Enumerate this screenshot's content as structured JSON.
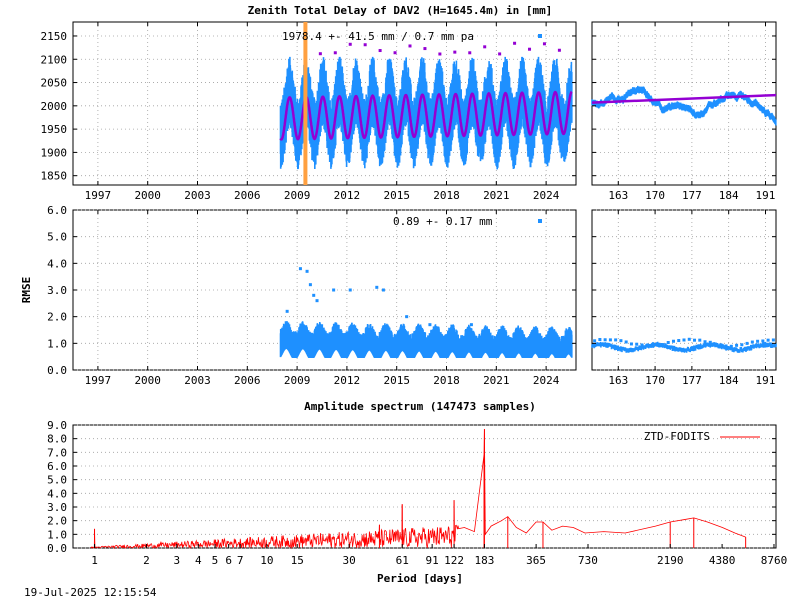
{
  "title": "Zenith Total Delay of DAV2 (H=1645.4m) in [mm]",
  "timestamp": "19-Jul-2025 12:15:54",
  "colors": {
    "data": "#1e90ff",
    "model": "#9400d3",
    "marker": "#ffa040",
    "spectrum": "#ff0000"
  },
  "chart_data": [
    {
      "id": "ztd-longterm",
      "type": "scatter",
      "title": "Zenith Total Delay of DAV2 (H=1645.4m) in [mm]",
      "annotation": "1978.4 +-  41.5 mm /  0.7 mm pa",
      "xlim": [
        1995.5,
        2025.8
      ],
      "ylim": [
        1830,
        2180
      ],
      "xticks": [
        1997,
        2000,
        2003,
        2006,
        2009,
        2012,
        2015,
        2018,
        2021,
        2024
      ],
      "yticks": [
        1850,
        1900,
        1950,
        2000,
        2050,
        2100,
        2150
      ],
      "data_start": 2008.0,
      "data_end": 2025.55,
      "mean": 1978.4,
      "seasonal_amplitude": 45,
      "trend_per_year": 0.7,
      "vertical_marker_x": 2009.5,
      "grid": true,
      "legend_position": "top"
    },
    {
      "id": "ztd-recent",
      "type": "scatter",
      "xlim": [
        158,
        193
      ],
      "ylim": [
        1830,
        2180
      ],
      "xticks": [
        163,
        170,
        177,
        184,
        191
      ],
      "grid": true
    },
    {
      "id": "rmse-longterm",
      "type": "scatter",
      "ylabel": "RMSE",
      "annotation": "0.89 +-  0.17 mm",
      "xlim": [
        1995.5,
        2025.8
      ],
      "ylim": [
        0,
        6
      ],
      "xticks": [
        1997,
        2000,
        2003,
        2006,
        2009,
        2012,
        2015,
        2018,
        2021,
        2024
      ],
      "yticks": [
        "0.0",
        "1.0",
        "2.0",
        "3.0",
        "4.0",
        "5.0",
        "6.0"
      ],
      "mean": 0.89,
      "outliers": [
        [
          2009.2,
          3.8
        ],
        [
          2009.6,
          3.7
        ],
        [
          2009.8,
          3.2
        ],
        [
          2010.0,
          2.8
        ],
        [
          2010.2,
          2.6
        ],
        [
          2011.2,
          3.0
        ],
        [
          2012.2,
          3.0
        ],
        [
          2013.8,
          3.1
        ],
        [
          2014.2,
          3.0
        ],
        [
          2008.4,
          2.2
        ],
        [
          2015.6,
          2.0
        ],
        [
          2017.0,
          1.7
        ],
        [
          2019.5,
          1.7
        ]
      ],
      "grid": true,
      "legend_position": "top"
    },
    {
      "id": "rmse-recent",
      "type": "scatter",
      "xlim": [
        158,
        193
      ],
      "ylim": [
        0,
        6
      ],
      "xticks": [
        163,
        170,
        177,
        184,
        191
      ],
      "level": 0.85,
      "grid": true
    },
    {
      "id": "amplitude-spectrum",
      "type": "line",
      "title": "Amplitude spectrum (147473 samples)",
      "xlabel": "Period [days]",
      "series_name": "ZTD-FODITS",
      "xscale": "log",
      "xlim": [
        0.75,
        9000
      ],
      "ylim": [
        0,
        9
      ],
      "xticks": [
        "1",
        "2",
        "3",
        "4",
        "5",
        "6",
        "7",
        "10",
        "15",
        "30",
        "61",
        "91",
        "122",
        "183",
        "365",
        "730",
        "2190",
        "4380",
        "8760"
      ],
      "yticks": [
        "0.0",
        "1.0",
        "2.0",
        "3.0",
        "4.0",
        "5.0",
        "6.0",
        "7.0",
        "8.0",
        "9.0"
      ],
      "peaks": [
        [
          1,
          1.4
        ],
        [
          45,
          1.7
        ],
        [
          61,
          3.2
        ],
        [
          122,
          3.5
        ],
        [
          183,
          8.7
        ],
        [
          182,
          6.8
        ],
        [
          250,
          2.3
        ],
        [
          400,
          1.9
        ],
        [
          2190,
          1.9
        ],
        [
          3000,
          2.2
        ],
        [
          6000,
          0.8
        ]
      ],
      "grid": true,
      "legend_position": "top-right"
    }
  ]
}
